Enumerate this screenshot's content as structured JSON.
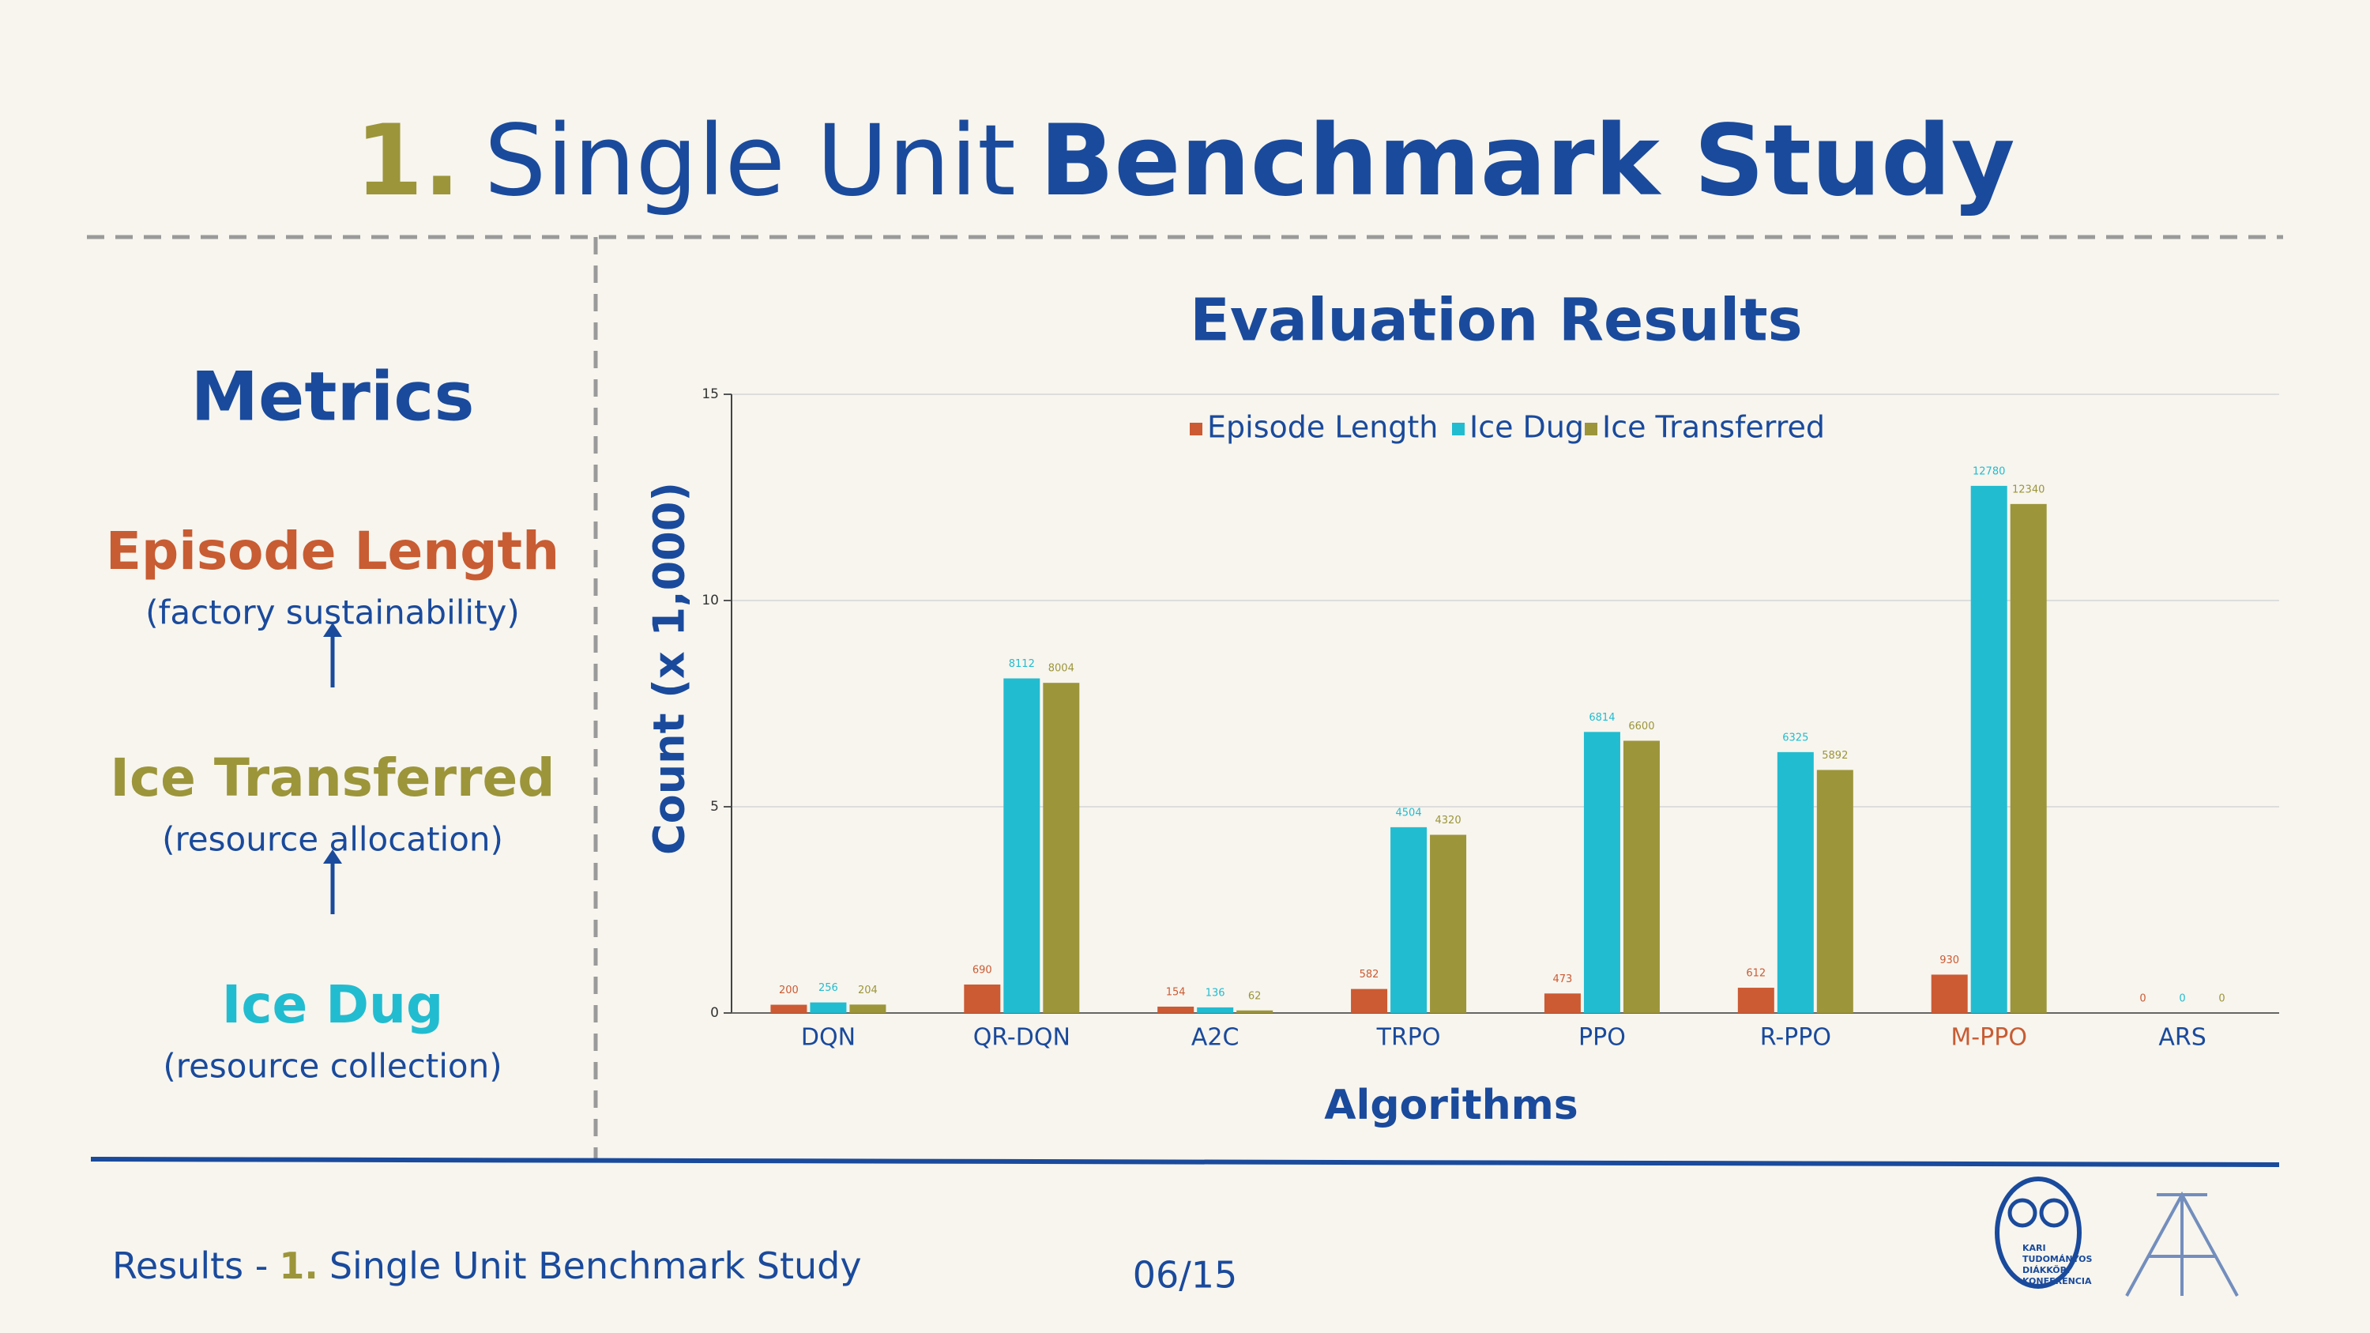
{
  "header": {
    "number": "1.",
    "title_regular": "Single Unit",
    "title_bold": "Benchmark Study"
  },
  "metrics": {
    "heading": "Metrics",
    "items": [
      {
        "label": "Episode Length",
        "note": "(factory sustainability)",
        "color": "#c85c33"
      },
      {
        "label": "Ice Transferred",
        "note": "(resource allocation)",
        "color": "#9c953a"
      },
      {
        "label": "Ice Dug",
        "note": "(resource collection)",
        "color": "#22bcd0"
      }
    ]
  },
  "chart_data": {
    "type": "bar",
    "title": "Evaluation Results",
    "x_label": "Algorithms",
    "y_label": "Count (x 1,000)",
    "categories": [
      "DQN",
      "QR-DQN",
      "A2C",
      "TRPO",
      "PPO",
      "R-PPO",
      "M-PPO",
      "ARS"
    ],
    "category_label_colors": [
      "#1a4a9c",
      "#1a4a9c",
      "#1a4a9c",
      "#1a4a9c",
      "#1a4a9c",
      "#1a4a9c",
      "#c85c33",
      "#1a4a9c"
    ],
    "series": [
      {
        "name": "Episode Length",
        "color": "#cc5a33",
        "values": [
          0.2,
          0.69,
          0.154,
          0.582,
          0.473,
          0.612,
          0.93,
          0
        ],
        "value_labels": [
          "200",
          "690",
          "154",
          "582",
          "473",
          "612",
          "930",
          "0"
        ]
      },
      {
        "name": "Ice Dug",
        "color": "#22bcd0",
        "values": [
          0.256,
          8.112,
          0.136,
          4.504,
          6.814,
          6.325,
          12.78,
          0
        ],
        "value_labels": [
          "256",
          "8112",
          "136",
          "4504",
          "6814",
          "6325",
          "12780",
          "0"
        ]
      },
      {
        "name": "Ice Transferred",
        "color": "#9c953a",
        "values": [
          0.204,
          8.004,
          0.062,
          4.32,
          6.6,
          5.892,
          12.34,
          0
        ],
        "value_labels": [
          "204",
          "8004",
          "62",
          "4320",
          "6600",
          "5892",
          "12340",
          "0"
        ]
      }
    ],
    "ylim": [
      0,
      15
    ],
    "yticks": [
      0,
      5,
      10,
      15
    ],
    "grid": true,
    "legend": "top"
  },
  "footer": {
    "section": "Results -",
    "number": "1.",
    "title": "Single Unit Benchmark Study",
    "page": "06/15",
    "logo_text": [
      "KARI",
      "TUDOMÁNYOS",
      "DIÁKKÖRI",
      "KONFERENCIA"
    ]
  }
}
